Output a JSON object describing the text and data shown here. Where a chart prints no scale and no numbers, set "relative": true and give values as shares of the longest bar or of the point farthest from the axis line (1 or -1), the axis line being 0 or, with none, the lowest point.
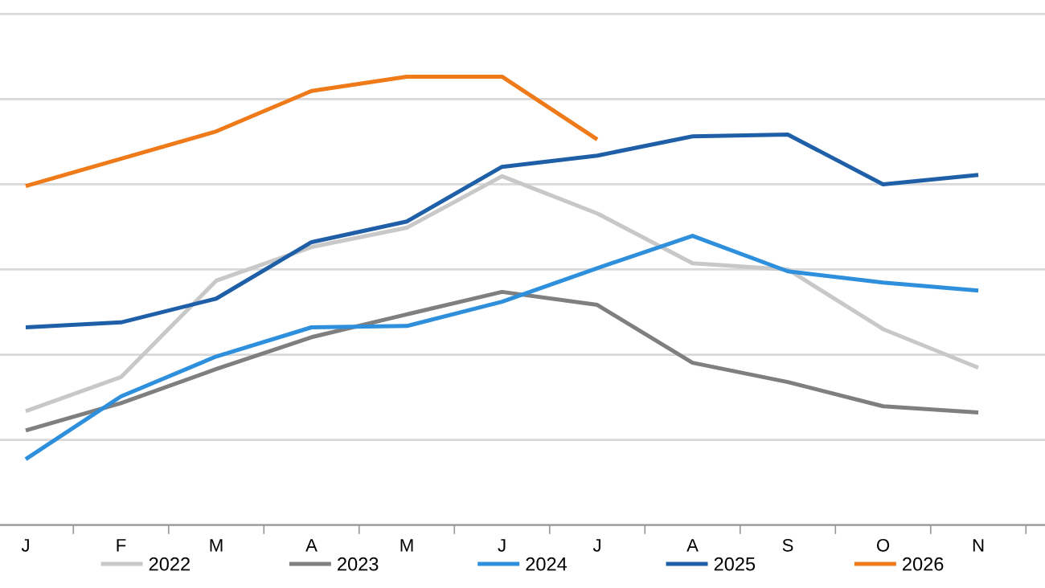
{
  "chart_data": {
    "type": "line",
    "relative": true,
    "categories": [
      "J",
      "F",
      "M",
      "A",
      "M",
      "J",
      "J",
      "A",
      "S",
      "O",
      "N"
    ],
    "grid": "y",
    "legend": "bottom",
    "marker": "none",
    "line_style": "solid",
    "series": [
      {
        "name": "2022",
        "color": "#c8c8c8",
        "values": [
          0.254,
          0.33,
          0.545,
          0.62,
          0.663,
          0.778,
          0.695,
          0.584,
          0.57,
          0.437,
          0.351
        ]
      },
      {
        "name": "2023",
        "color": "#7f7f7f",
        "values": [
          0.211,
          0.272,
          0.348,
          0.419,
          0.47,
          0.52,
          0.491,
          0.362,
          0.319,
          0.265,
          0.251
        ]
      },
      {
        "name": "2024",
        "color": "#2e8fdc",
        "values": [
          0.147,
          0.287,
          0.376,
          0.441,
          0.444,
          0.498,
          0.573,
          0.645,
          0.566,
          0.541,
          0.523
        ]
      },
      {
        "name": "2025",
        "color": "#1f5fa8",
        "values": [
          0.441,
          0.452,
          0.505,
          0.631,
          0.677,
          0.799,
          0.824,
          0.867,
          0.871,
          0.76,
          0.781
        ]
      },
      {
        "name": "2026",
        "color": "#ee7a1a",
        "values": [
          0.756,
          0.817,
          0.878,
          0.968,
          1,
          1,
          0.86,
          null,
          null,
          null,
          null
        ]
      }
    ]
  }
}
